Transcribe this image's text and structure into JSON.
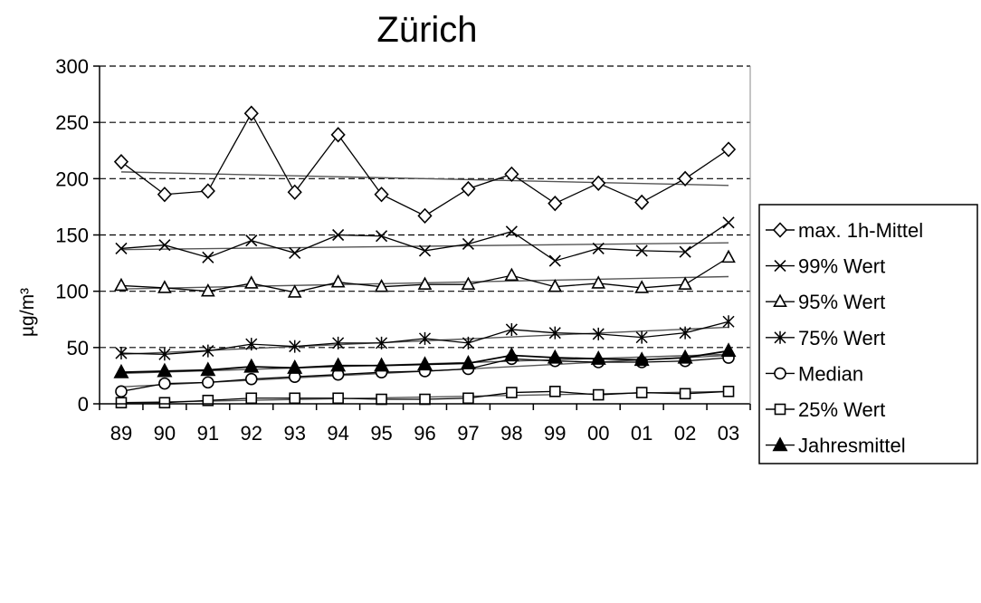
{
  "chart_data": {
    "type": "line",
    "title": "Zürich",
    "xlabel": "",
    "ylabel": "µg/m³",
    "categories": [
      "89",
      "90",
      "91",
      "92",
      "93",
      "94",
      "95",
      "96",
      "97",
      "98",
      "99",
      "00",
      "01",
      "02",
      "03"
    ],
    "yticks": [
      "0",
      "50",
      "100",
      "150",
      "200",
      "250",
      "300"
    ],
    "ylim": [
      0,
      300
    ],
    "grid": "horizontal dashed",
    "legend_position": "right",
    "series": [
      {
        "name": "max. 1h-Mittel",
        "marker": "diamond",
        "values": [
          215,
          186,
          189,
          258,
          188,
          239,
          186,
          167,
          191,
          204,
          178,
          196,
          179,
          200,
          226
        ],
        "trend": [
          206,
          194
        ]
      },
      {
        "name": "99% Wert",
        "marker": "x",
        "values": [
          138,
          141,
          130,
          145,
          134,
          150,
          149,
          136,
          142,
          153,
          127,
          138,
          136,
          135,
          161
        ],
        "trend": [
          137,
          143
        ]
      },
      {
        "name": "95% Wert",
        "marker": "triangle-open",
        "values": [
          105,
          103,
          100,
          107,
          99,
          108,
          104,
          106,
          106,
          114,
          104,
          107,
          103,
          106,
          130
        ],
        "trend": [
          102,
          113
        ]
      },
      {
        "name": "75% Wert",
        "marker": "asterisk",
        "values": [
          45,
          44,
          47,
          53,
          51,
          54,
          54,
          58,
          54,
          66,
          63,
          62,
          59,
          63,
          73
        ],
        "trend": [
          44,
          68
        ]
      },
      {
        "name": "Median",
        "marker": "circle-open",
        "values": [
          11,
          18,
          19,
          22,
          24,
          26,
          28,
          29,
          31,
          40,
          38,
          37,
          37,
          38,
          41
        ],
        "trend": [
          15,
          43
        ]
      },
      {
        "name": "25% Wert",
        "marker": "square-open",
        "values": [
          1,
          1,
          3,
          5,
          5,
          5,
          4,
          4,
          5,
          10,
          11,
          8,
          10,
          9,
          11
        ],
        "trend": [
          1,
          11
        ]
      },
      {
        "name": "Jahresmittel",
        "marker": "triangle-filled",
        "values": [
          28,
          29,
          30,
          33,
          32,
          34,
          34,
          35,
          36,
          43,
          41,
          40,
          39,
          41,
          47
        ],
        "trend": [
          27,
          44
        ]
      }
    ]
  }
}
